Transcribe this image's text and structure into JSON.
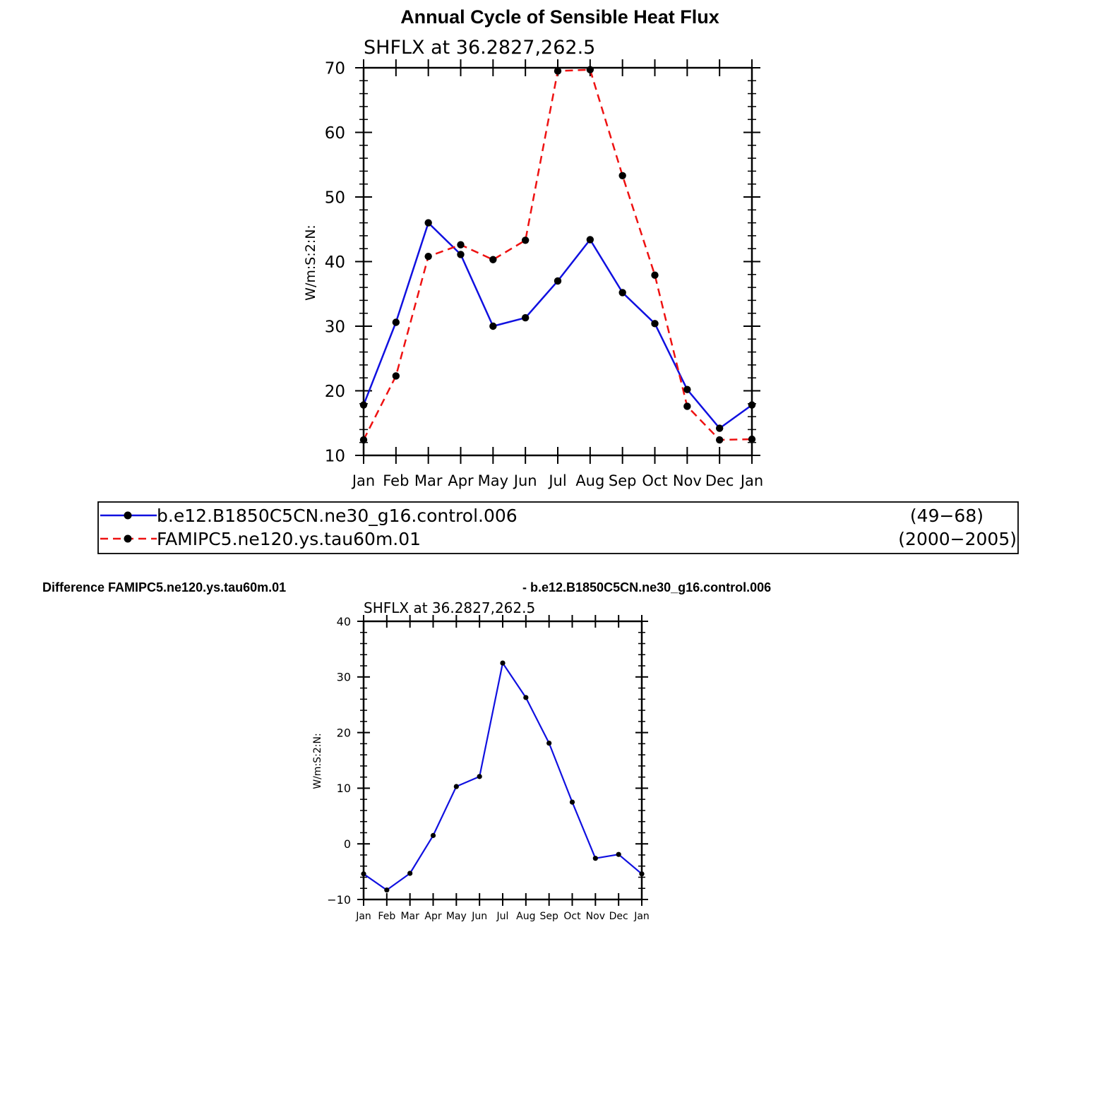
{
  "page": {
    "title": "Annual Cycle of Sensible Heat Flux",
    "difference_title_left": "Difference FAMIPC5.ne120.ys.tau60m.01",
    "difference_title_right": "- b.e12.B1850C5CN.ne30_g16.control.006"
  },
  "colors": {
    "series_blue": "#1010e0",
    "series_red": "#ee1111",
    "marker": "#000000"
  },
  "chart_data": [
    {
      "type": "line",
      "subtitle": "SHFLX at 36.2827,262.5",
      "ylabel": "W/m:S:2:N:",
      "xlabel": "",
      "categories": [
        "Jan",
        "Feb",
        "Mar",
        "Apr",
        "May",
        "Jun",
        "Jul",
        "Aug",
        "Sep",
        "Oct",
        "Nov",
        "Dec",
        "Jan"
      ],
      "ylim": [
        10,
        70
      ],
      "yticks": [
        10,
        20,
        30,
        40,
        50,
        60,
        70
      ],
      "grid": false,
      "legend": "below",
      "series": [
        {
          "name": "b.e12.B1850C5CN.ne30_g16.control.006",
          "period": "(49−68)",
          "style": "solid",
          "color": "#1010e0",
          "values": [
            17.8,
            30.6,
            46.0,
            41.1,
            30.0,
            31.3,
            37.0,
            43.4,
            35.2,
            30.4,
            20.2,
            14.2,
            17.8
          ]
        },
        {
          "name": "FAMIPC5.ne120.ys.tau60m.01",
          "period": "(2000−2005)",
          "style": "dashed",
          "color": "#ee1111",
          "values": [
            12.4,
            22.3,
            40.8,
            42.6,
            40.3,
            43.3,
            69.5,
            69.7,
            53.3,
            37.9,
            17.6,
            12.4,
            12.5
          ]
        }
      ]
    },
    {
      "type": "line",
      "subtitle": "SHFLX at 36.2827,262.5",
      "ylabel": "W/m:S:2:N:",
      "xlabel": "",
      "categories": [
        "Jan",
        "Feb",
        "Mar",
        "Apr",
        "May",
        "Jun",
        "Jul",
        "Aug",
        "Sep",
        "Oct",
        "Nov",
        "Dec",
        "Jan"
      ],
      "ylim": [
        -10,
        40
      ],
      "yticks": [
        -10,
        0,
        10,
        20,
        30,
        40
      ],
      "ytick_labels": [
        "−10",
        "0",
        "10",
        "20",
        "30",
        "40"
      ],
      "grid": false,
      "series": [
        {
          "style": "solid",
          "color": "#1010e0",
          "values": [
            -5.4,
            -8.3,
            -5.3,
            1.5,
            10.3,
            12.1,
            32.5,
            26.3,
            18.1,
            7.5,
            -2.6,
            -1.9,
            -5.4
          ]
        }
      ]
    }
  ]
}
